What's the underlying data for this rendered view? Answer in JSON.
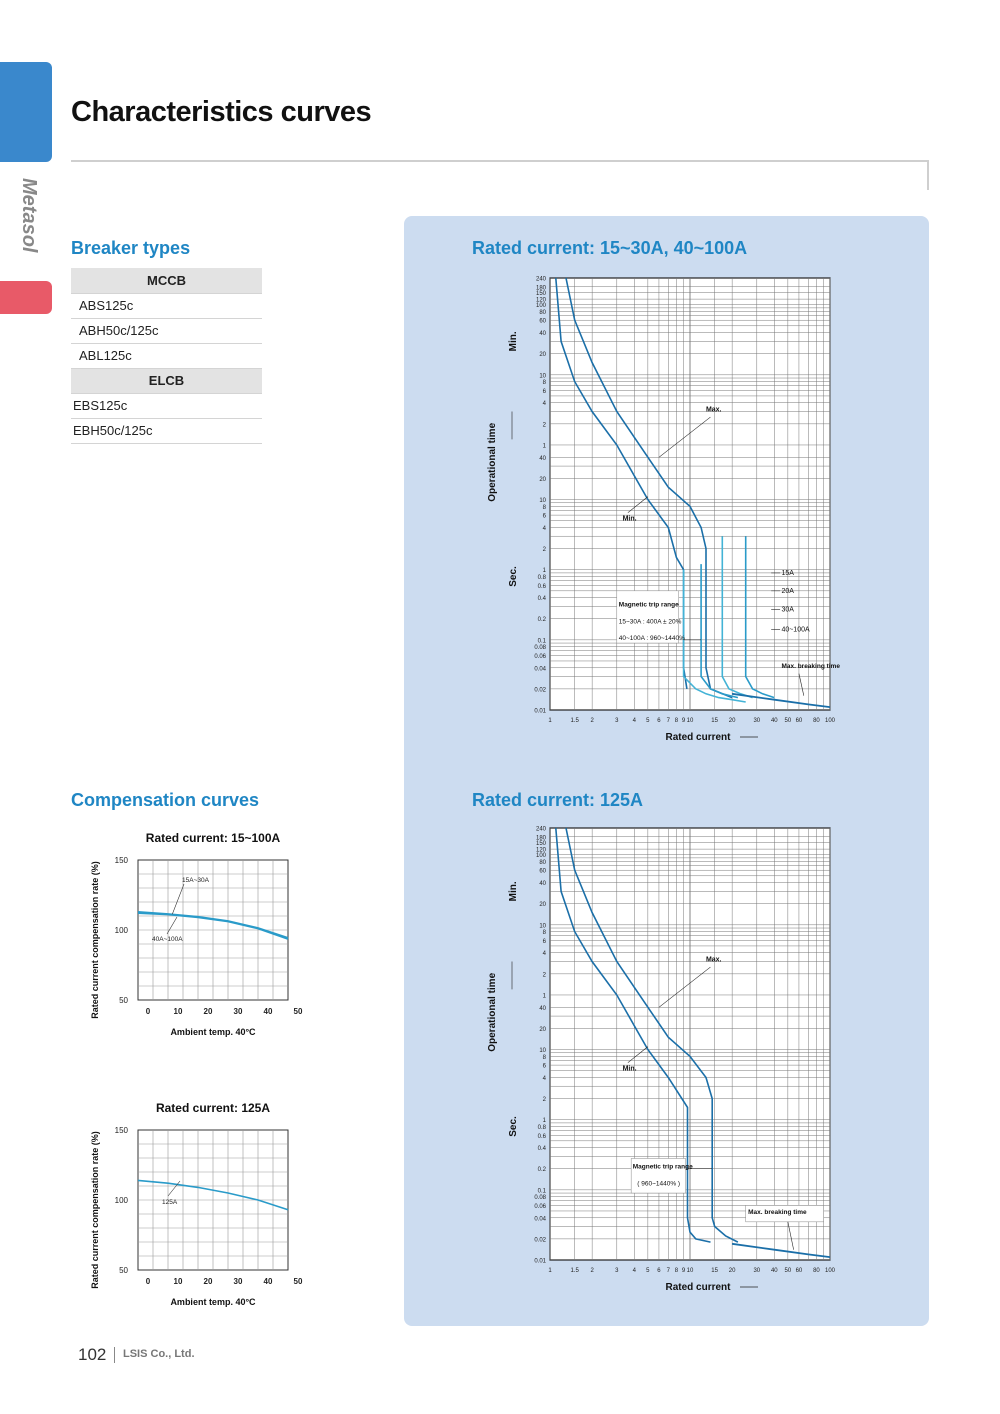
{
  "sidebar": {
    "brand": "Metasol",
    "accent_blue": "#3a88cc",
    "accent_red": "#e85a68"
  },
  "page": {
    "title": "Characteristics curves"
  },
  "breaker_types": {
    "heading": "Breaker types",
    "groups": [
      {
        "name": "MCCB",
        "items": [
          "ABS125c",
          "ABH50c/125c",
          "ABL125c"
        ]
      },
      {
        "name": "ELCB",
        "items": [
          "EBS125c",
          "EBH50c/125c"
        ]
      }
    ]
  },
  "compensation": {
    "heading": "Compensation curves"
  },
  "trip_top": {
    "heading": "Rated current: 15~30A, 40~100A"
  },
  "trip_bottom": {
    "heading": "Rated current: 125A"
  },
  "footer": {
    "page_number": "102",
    "company": "LSIS Co., Ltd."
  },
  "chart_data": [
    {
      "type": "line",
      "title": "Rated current: 15~100A",
      "xlabel": "Ambient temp. 40°C",
      "ylabel": "Rated current compensation rate (%)",
      "x": [
        0,
        10,
        20,
        30,
        40,
        50
      ],
      "xlim": [
        0,
        50
      ],
      "ylim": [
        50,
        150
      ],
      "yticks": [
        50,
        100,
        150
      ],
      "series": [
        {
          "name": "15A~30A",
          "values": [
            113,
            111.5,
            109.5,
            106.5,
            101.5,
            94.5
          ]
        },
        {
          "name": "40A~100A",
          "values": [
            112,
            111,
            109,
            106,
            101,
            93.5
          ]
        }
      ],
      "grid": true
    },
    {
      "type": "line",
      "title": "Rated current: 125A",
      "xlabel": "Ambient temp. 40°C",
      "ylabel": "Rated current compensation rate (%)",
      "x": [
        0,
        10,
        20,
        30,
        40,
        50
      ],
      "xlim": [
        0,
        50
      ],
      "ylim": [
        50,
        150
      ],
      "yticks": [
        50,
        100,
        150
      ],
      "series": [
        {
          "name": "125A",
          "values": [
            114,
            112,
            109,
            105,
            100,
            93
          ]
        }
      ],
      "grid": true
    },
    {
      "type": "line",
      "title": "Rated current: 15~30A, 40~100A",
      "xlabel": "Rated current",
      "ylabel": "Operational time",
      "x_scale": "log",
      "xticks": [
        "1",
        "1.5",
        "2",
        "3",
        "4",
        "5",
        "6",
        "7",
        "8",
        "9",
        "10",
        "15",
        "20",
        "30",
        "40",
        "50",
        "60",
        "80",
        "100"
      ],
      "yticks_sec": [
        "0.01",
        "0.02",
        "0.04",
        "0.06",
        "0.08",
        "0.1",
        "0.2",
        "0.4",
        "0.6",
        "0.8",
        "1",
        "2",
        "4",
        "6",
        "8",
        "10",
        "20",
        "40"
      ],
      "yticks_min": [
        "1",
        "2",
        "4",
        "6",
        "8",
        "10",
        "20",
        "40",
        "60",
        "80",
        "100",
        "120",
        "150",
        "180",
        "240"
      ],
      "y_units": [
        "Sec.",
        "Min."
      ],
      "curve_labels": [
        "Max.",
        "Min."
      ],
      "annotations": [
        "Magnetic trip range",
        "15~30A : 400A ± 20%",
        "40~100A : 960~1440%",
        "Max. breaking time"
      ],
      "legend_entries": [
        "15A",
        "20A",
        "30A",
        "40~100A"
      ],
      "series": [
        {
          "name": "Min.",
          "x": [
            1.1,
            1.2,
            1.5,
            2,
            3,
            5,
            7,
            8,
            9,
            9,
            9.5
          ],
          "t_sec": [
            14400,
            1800,
            480,
            180,
            60,
            10,
            4,
            1.5,
            1,
            0.04,
            0.02
          ]
        },
        {
          "name": "Max.",
          "x": [
            1.3,
            1.5,
            2,
            3,
            5,
            7,
            10,
            12,
            13,
            13,
            14,
            20
          ],
          "t_sec": [
            14400,
            3600,
            900,
            180,
            40,
            15,
            8,
            4,
            2,
            0.04,
            0.02,
            0.015
          ]
        },
        {
          "name": "15A",
          "x": [
            9,
            9,
            11,
            13,
            16,
            20,
            25
          ],
          "t_sec": [
            1,
            0.03,
            0.02,
            0.017,
            0.015,
            0.014,
            0.013
          ]
        },
        {
          "name": "20A",
          "x": [
            12,
            12,
            14,
            17,
            22
          ],
          "t_sec": [
            1.2,
            0.03,
            0.02,
            0.017,
            0.015
          ]
        },
        {
          "name": "30A",
          "x": [
            17,
            17,
            19,
            23,
            28
          ],
          "t_sec": [
            3,
            0.03,
            0.02,
            0.017,
            0.015
          ]
        },
        {
          "name": "40~100A",
          "x": [
            25,
            25,
            28,
            33,
            40
          ],
          "t_sec": [
            3,
            0.03,
            0.02,
            0.017,
            0.015
          ]
        },
        {
          "name": "Max. breaking time",
          "x": [
            20,
            40,
            70,
            100
          ],
          "t_sec": [
            0.017,
            0.014,
            0.012,
            0.011
          ]
        }
      ]
    },
    {
      "type": "line",
      "title": "Rated current: 125A",
      "xlabel": "Rated current",
      "ylabel": "Operational time",
      "x_scale": "log",
      "xticks": [
        "1",
        "1.5",
        "2",
        "3",
        "4",
        "5",
        "6",
        "7",
        "8",
        "9",
        "10",
        "15",
        "20",
        "30",
        "40",
        "50",
        "60",
        "80",
        "100"
      ],
      "yticks_sec": [
        "0.01",
        "0.02",
        "0.04",
        "0.06",
        "0.08",
        "0.1",
        "0.2",
        "0.4",
        "0.6",
        "0.8",
        "1",
        "2",
        "4",
        "6",
        "8",
        "10",
        "20",
        "40"
      ],
      "yticks_min": [
        "1",
        "2",
        "4",
        "6",
        "8",
        "10",
        "20",
        "40",
        "60",
        "80",
        "100",
        "120",
        "150",
        "180",
        "240"
      ],
      "y_units": [
        "Sec.",
        "Min."
      ],
      "curve_labels": [
        "Max.",
        "Min."
      ],
      "annotations": [
        "Magnetic trip range",
        "( 960~1440% )",
        "Max. breaking time"
      ],
      "series": [
        {
          "name": "Min.",
          "x": [
            1.1,
            1.2,
            1.5,
            2,
            3,
            5,
            7,
            9.6,
            9.6,
            10,
            11,
            14
          ],
          "t_sec": [
            14400,
            1800,
            480,
            180,
            60,
            10,
            4,
            1.5,
            0.04,
            0.025,
            0.02,
            0.018
          ]
        },
        {
          "name": "Max.",
          "x": [
            1.3,
            1.5,
            2,
            3,
            5,
            7,
            10,
            13,
            14.4,
            14.4,
            15,
            18,
            22
          ],
          "t_sec": [
            14400,
            3600,
            900,
            180,
            40,
            15,
            8,
            4,
            2,
            0.04,
            0.03,
            0.022,
            0.018
          ]
        },
        {
          "name": "Max. breaking time",
          "x": [
            20,
            40,
            70,
            100
          ],
          "t_sec": [
            0.017,
            0.014,
            0.012,
            0.011
          ]
        }
      ]
    }
  ]
}
